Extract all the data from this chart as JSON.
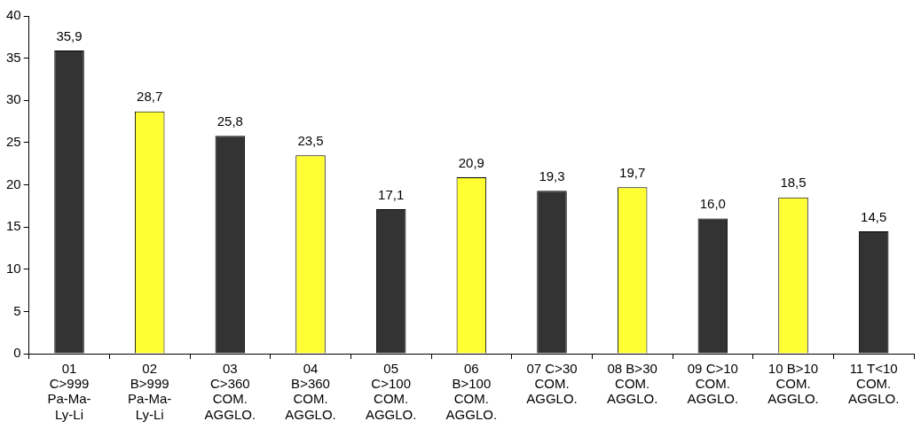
{
  "chart_data": {
    "type": "bar",
    "categories": [
      "01 C>999 Pa-Ma-Ly-Li",
      "02 B>999 Pa-Ma-Ly-Li",
      "03 C>360 COM. AGGLO.",
      "04 B>360 COM. AGGLO.",
      "05 C>100 COM. AGGLO.",
      "06 B>100 COM. AGGLO.",
      "07 C>30 COM. AGGLO.",
      "08 B>30 COM. AGGLO.",
      "09 C>10 COM. AGGLO.",
      "10 B>10 COM. AGGLO.",
      "11 T<10 COM. AGGLO."
    ],
    "values": [
      35.9,
      28.7,
      25.8,
      23.5,
      17.1,
      20.9,
      19.3,
      19.7,
      16.0,
      18.5,
      14.5
    ],
    "value_labels": [
      "35,9",
      "28,7",
      "25,8",
      "23,5",
      "17,1",
      "20,9",
      "19,3",
      "19,7",
      "16,0",
      "18,5",
      "14,5"
    ],
    "colors": [
      "#333333",
      "#ffff33",
      "#333333",
      "#ffff33",
      "#333333",
      "#ffff33",
      "#333333",
      "#ffff33",
      "#333333",
      "#ffff33",
      "#333333"
    ],
    "ylim": [
      0,
      40
    ],
    "yticks": [
      0,
      5,
      10,
      15,
      20,
      25,
      30,
      35,
      40
    ],
    "grid": false,
    "legend": false
  }
}
